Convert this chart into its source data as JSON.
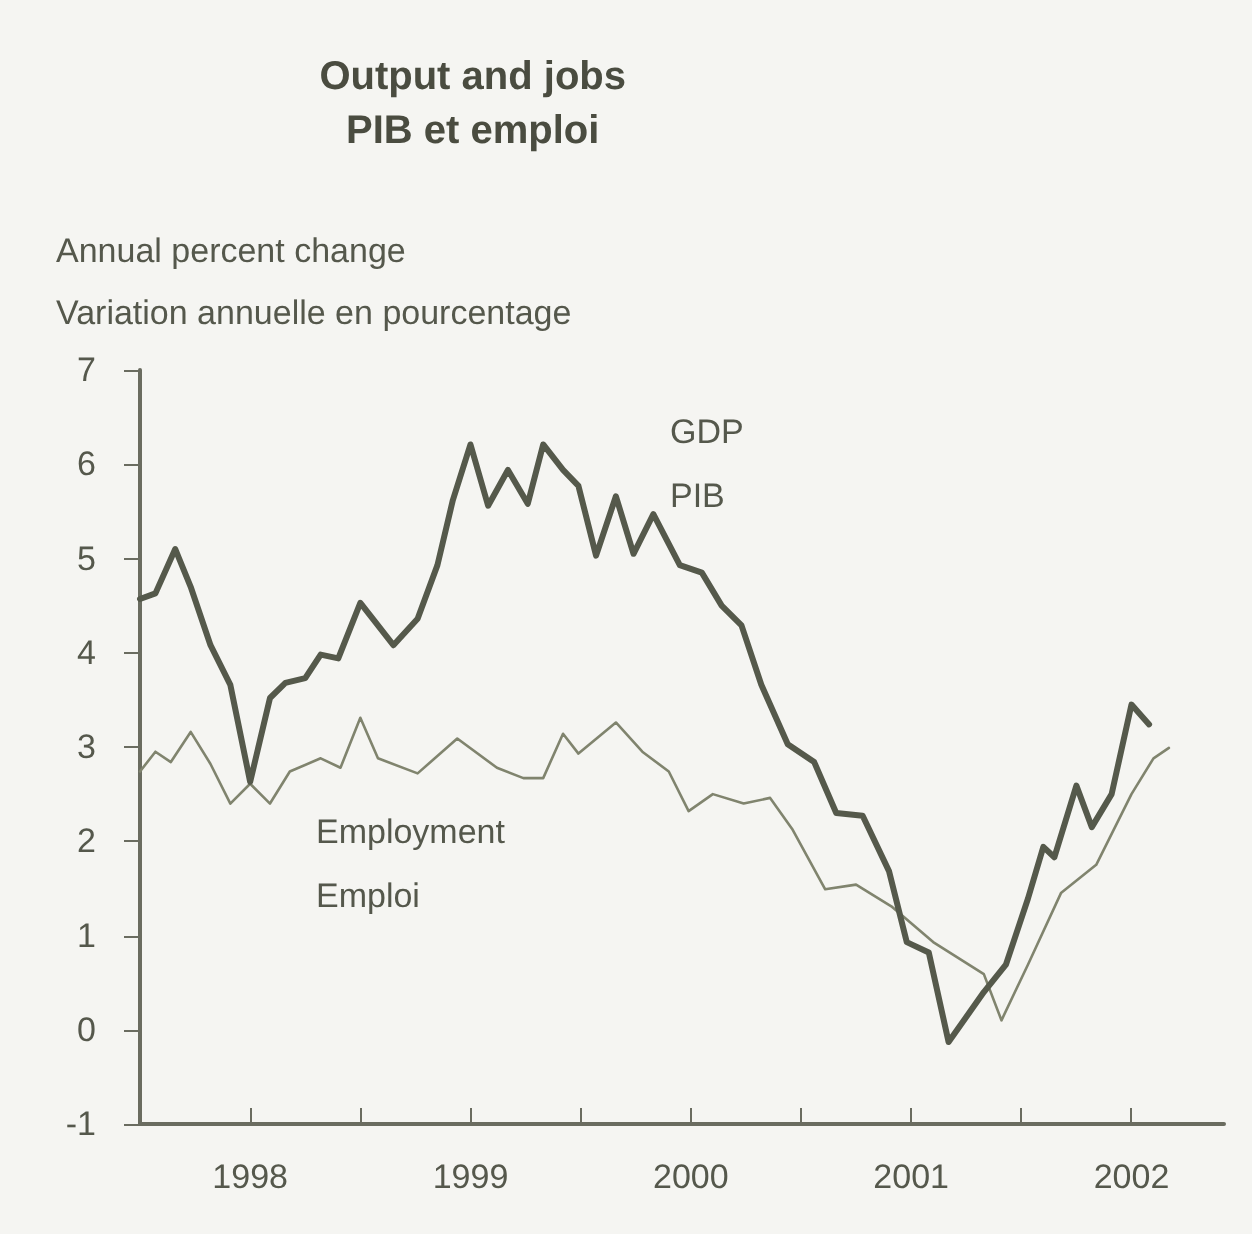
{
  "chart_data": {
    "type": "line",
    "title": "Output and jobs\nPIB et emploi",
    "ylabel": "Annual percent change\nVariation annuelle en pourcentage",
    "xlim": [
      1998,
      2002.92
    ],
    "xticks": [
      {
        "value": 1998.5,
        "label": "1998"
      },
      {
        "value": 1999,
        "label": null
      },
      {
        "value": 1999.5,
        "label": "1999"
      },
      {
        "value": 2000,
        "label": null
      },
      {
        "value": 2000.5,
        "label": "2000"
      },
      {
        "value": 2001,
        "label": null
      },
      {
        "value": 2001.5,
        "label": "2001"
      },
      {
        "value": 2002,
        "label": null
      },
      {
        "value": 2002.5,
        "label": "2002"
      }
    ],
    "ylim": [
      -1,
      7
    ],
    "yticks": [
      -1,
      0,
      1,
      2,
      3,
      4,
      5,
      6,
      7
    ],
    "grid": false,
    "legend": false,
    "marker": "none",
    "line_style": "solid",
    "series": [
      {
        "name": "GDP\nPIB",
        "color": "#55594b",
        "x": [
          1998.0,
          1998.07,
          1998.16,
          1998.23,
          1998.32,
          1998.41,
          1998.5,
          1998.59,
          1998.66,
          1998.75,
          1998.82,
          1998.9,
          1999.0,
          1999.08,
          1999.15,
          1999.26,
          1999.35,
          1999.42,
          1999.5,
          1999.58,
          1999.67,
          1999.76,
          1999.83,
          1999.92,
          1999.99,
          2000.07,
          2000.16,
          2000.24,
          2000.33,
          2000.45,
          2000.55,
          2000.64,
          2000.73,
          2000.82,
          2000.94,
          2001.06,
          2001.16,
          2001.28,
          2001.4,
          2001.48,
          2001.58,
          2001.67,
          2001.83,
          2001.93,
          2002.03,
          2002.1,
          2002.15,
          2002.25,
          2002.32,
          2002.41,
          2002.5,
          2002.58
        ],
        "values": [
          4.57,
          4.63,
          5.1,
          4.7,
          4.08,
          3.66,
          2.63,
          3.52,
          3.68,
          3.73,
          3.98,
          3.94,
          4.53,
          4.29,
          4.08,
          4.36,
          4.93,
          5.62,
          6.21,
          5.56,
          5.94,
          5.58,
          6.21,
          5.94,
          5.77,
          5.03,
          5.66,
          5.05,
          5.47,
          4.93,
          4.85,
          4.5,
          4.29,
          3.66,
          3.03,
          2.84,
          2.3,
          2.27,
          1.68,
          0.93,
          0.82,
          -0.13,
          0.4,
          0.69,
          1.39,
          1.94,
          1.83,
          2.59,
          2.15,
          2.5,
          3.45,
          3.24
        ]
      },
      {
        "name": "Employment\nEmploi",
        "color": "#80846e",
        "x": [
          1998.0,
          1998.07,
          1998.14,
          1998.23,
          1998.32,
          1998.41,
          1998.5,
          1998.59,
          1998.68,
          1998.82,
          1998.91,
          1999.0,
          1999.08,
          1999.26,
          1999.44,
          1999.62,
          1999.74,
          1999.83,
          1999.92,
          1999.99,
          2000.16,
          2000.28,
          2000.4,
          2000.49,
          2000.6,
          2000.74,
          2000.86,
          2000.96,
          2001.11,
          2001.25,
          2001.41,
          2001.6,
          2001.83,
          2001.91,
          2002.03,
          2002.18,
          2002.34,
          2002.5,
          2002.6,
          2002.67
        ],
        "values": [
          2.74,
          2.95,
          2.84,
          3.16,
          2.82,
          2.4,
          2.61,
          2.4,
          2.74,
          2.88,
          2.78,
          3.31,
          2.88,
          2.72,
          3.09,
          2.78,
          2.67,
          2.67,
          3.14,
          2.93,
          3.26,
          2.95,
          2.74,
          2.32,
          2.5,
          2.4,
          2.46,
          2.13,
          1.49,
          1.54,
          1.31,
          0.93,
          0.59,
          0.1,
          0.69,
          1.45,
          1.75,
          2.5,
          2.88,
          2.99
        ]
      }
    ]
  }
}
